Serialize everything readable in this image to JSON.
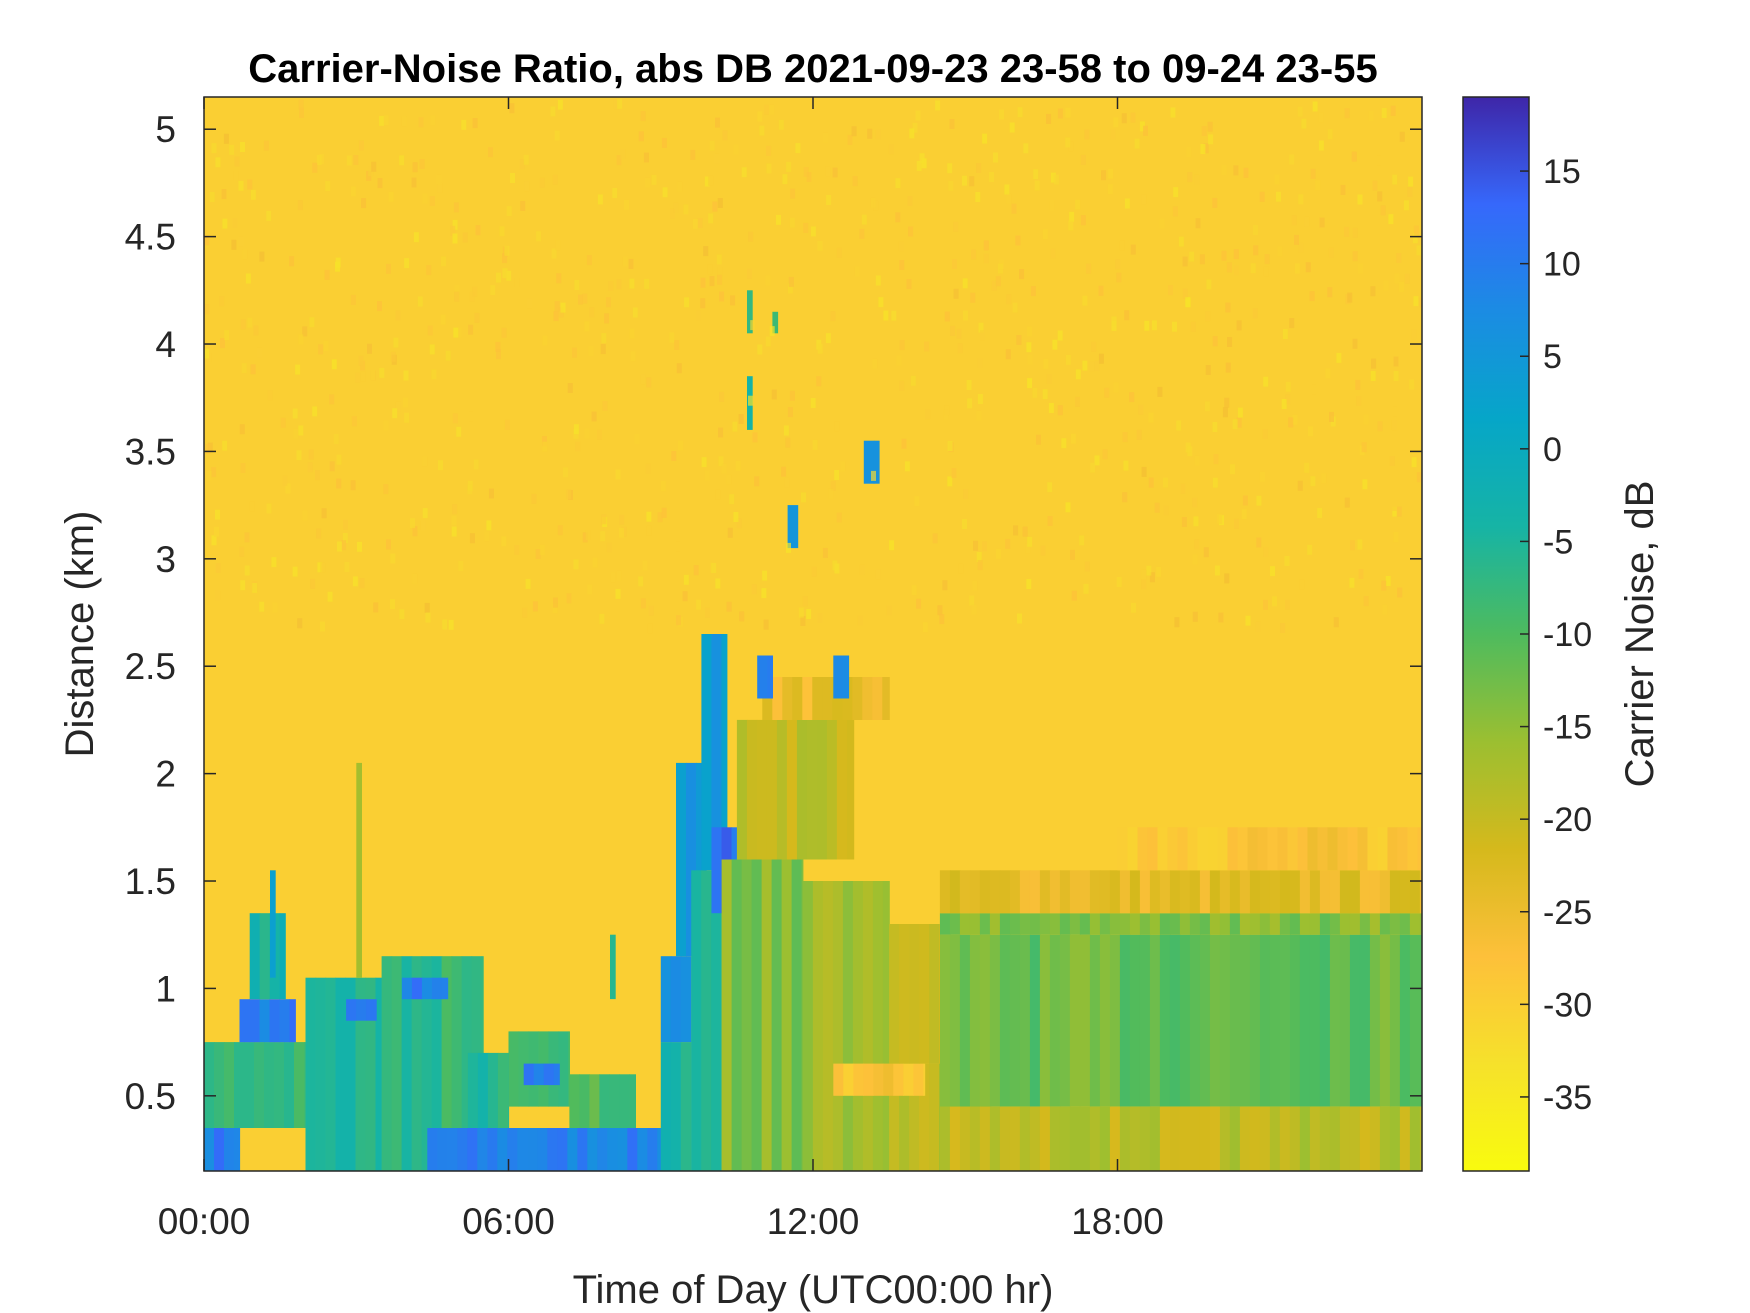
{
  "chart_data": {
    "type": "heatmap",
    "title": "Carrier-Noise Ratio, abs DB 2021-09-23 23-58 to 09-24 23-55",
    "xlabel": "Time of Day (UTC00:00 hr)",
    "ylabel": "Distance (km)",
    "x_unit": "hours",
    "xlim": [
      0,
      24
    ],
    "ylim": [
      0.15,
      5.15
    ],
    "x_ticks": [
      0,
      6,
      12,
      18
    ],
    "x_tick_labels": [
      "00:00",
      "06:00",
      "12:00",
      "18:00"
    ],
    "y_ticks": [
      0.5,
      1,
      1.5,
      2,
      2.5,
      3,
      3.5,
      4,
      4.5,
      5
    ],
    "y_tick_labels": [
      "0.5",
      "1",
      "1.5",
      "2",
      "2.5",
      "3",
      "3.5",
      "4",
      "4.5",
      "5"
    ],
    "colorbar": {
      "label": "Carrier Noise, dB",
      "range": [
        -39,
        19
      ],
      "ticks": [
        -35,
        -30,
        -25,
        -20,
        -15,
        -10,
        -5,
        0,
        5,
        10,
        15
      ],
      "tick_labels": [
        "-35",
        "-30",
        "-25",
        "-20",
        "-15",
        "-10",
        "-5",
        "0",
        "5",
        "10",
        "15"
      ],
      "colormap": "parula-reversed"
    },
    "grid": false,
    "background_level_db": -30,
    "regions": [
      {
        "t0": 0.0,
        "t1": 0.7,
        "d0": 0.15,
        "d1": 0.35,
        "db": 10
      },
      {
        "t0": 0.0,
        "t1": 2.0,
        "d0": 0.35,
        "d1": 0.75,
        "db": -8
      },
      {
        "t0": 0.7,
        "t1": 1.8,
        "d0": 0.75,
        "d1": 0.95,
        "db": 10
      },
      {
        "t0": 0.9,
        "t1": 1.6,
        "d0": 0.95,
        "d1": 1.35,
        "db": -4
      },
      {
        "t0": 2.0,
        "t1": 3.5,
        "d0": 0.15,
        "d1": 1.05,
        "db": -6
      },
      {
        "t0": 2.8,
        "t1": 3.4,
        "d0": 0.85,
        "d1": 0.95,
        "db": 12
      },
      {
        "t0": 3.5,
        "t1": 5.5,
        "d0": 0.15,
        "d1": 1.15,
        "db": -7
      },
      {
        "t0": 3.9,
        "t1": 4.8,
        "d0": 0.95,
        "d1": 1.05,
        "db": 10
      },
      {
        "t0": 5.2,
        "t1": 6.0,
        "d0": 0.15,
        "d1": 0.7,
        "db": -6
      },
      {
        "t0": 6.0,
        "t1": 7.2,
        "d0": 0.45,
        "d1": 0.8,
        "db": -8
      },
      {
        "t0": 6.3,
        "t1": 7.0,
        "d0": 0.55,
        "d1": 0.65,
        "db": 9
      },
      {
        "t0": 4.4,
        "t1": 9.0,
        "d0": 0.15,
        "d1": 0.35,
        "db": 9
      },
      {
        "t0": 7.2,
        "t1": 8.5,
        "d0": 0.35,
        "d1": 0.6,
        "db": -10
      },
      {
        "t0": 9.0,
        "t1": 9.6,
        "d0": 0.15,
        "d1": 0.75,
        "db": -5
      },
      {
        "t0": 9.0,
        "t1": 9.6,
        "d0": 0.75,
        "d1": 1.15,
        "db": 9
      },
      {
        "t0": 9.3,
        "t1": 9.9,
        "d0": 1.15,
        "d1": 2.05,
        "db": 6
      },
      {
        "t0": 9.6,
        "t1": 10.2,
        "d0": 0.15,
        "d1": 1.55,
        "db": -6
      },
      {
        "t0": 9.8,
        "t1": 10.3,
        "d0": 1.55,
        "d1": 2.65,
        "db": 4
      },
      {
        "t0": 10.0,
        "t1": 10.7,
        "d0": 1.35,
        "d1": 1.75,
        "db": 12
      },
      {
        "t0": 10.2,
        "t1": 11.8,
        "d0": 0.15,
        "d1": 1.6,
        "db": -14
      },
      {
        "t0": 10.5,
        "t1": 12.8,
        "d0": 1.6,
        "d1": 2.25,
        "db": -19
      },
      {
        "t0": 11.0,
        "t1": 13.5,
        "d0": 2.25,
        "d1": 2.45,
        "db": -25
      },
      {
        "t0": 11.8,
        "t1": 13.5,
        "d0": 0.15,
        "d1": 1.5,
        "db": -17
      },
      {
        "t0": 13.5,
        "t1": 15.5,
        "d0": 0.15,
        "d1": 0.65,
        "db": -19
      },
      {
        "t0": 12.4,
        "t1": 14.2,
        "d0": 0.5,
        "d1": 0.65,
        "db": -28
      },
      {
        "t0": 13.5,
        "t1": 14.5,
        "d0": 0.65,
        "d1": 1.3,
        "db": -21
      },
      {
        "t0": 14.5,
        "t1": 24.0,
        "d0": 0.15,
        "d1": 0.45,
        "db": -19
      },
      {
        "t0": 14.5,
        "t1": 24.0,
        "d0": 0.45,
        "d1": 1.25,
        "db": -12
      },
      {
        "t0": 14.5,
        "t1": 24.0,
        "d0": 1.25,
        "d1": 1.35,
        "db": -14
      },
      {
        "t0": 14.5,
        "t1": 24.0,
        "d0": 1.35,
        "d1": 1.55,
        "db": -24
      },
      {
        "t0": 18.0,
        "t1": 24.0,
        "d0": 1.55,
        "d1": 1.75,
        "db": -28
      },
      {
        "t0": 10.9,
        "t1": 11.2,
        "d0": 2.35,
        "d1": 2.55,
        "db": 10
      },
      {
        "t0": 12.4,
        "t1": 12.7,
        "d0": 2.35,
        "d1": 2.55,
        "db": 10
      },
      {
        "t0": 11.5,
        "t1": 11.7,
        "d0": 3.05,
        "d1": 3.25,
        "db": 8
      },
      {
        "t0": 13.0,
        "t1": 13.3,
        "d0": 3.35,
        "d1": 3.55,
        "db": 7
      },
      {
        "t0": 10.7,
        "t1": 10.8,
        "d0": 3.6,
        "d1": 3.85,
        "db": -2
      },
      {
        "t0": 10.7,
        "t1": 10.8,
        "d0": 4.05,
        "d1": 4.25,
        "db": -8
      },
      {
        "t0": 11.2,
        "t1": 11.3,
        "d0": 4.05,
        "d1": 4.15,
        "db": -6
      },
      {
        "t0": 3.0,
        "t1": 3.1,
        "d0": 1.05,
        "d1": 2.05,
        "db": -14
      },
      {
        "t0": 1.3,
        "t1": 1.4,
        "d0": 1.05,
        "d1": 1.55,
        "db": 6
      },
      {
        "t0": 8.0,
        "t1": 8.1,
        "d0": 0.95,
        "d1": 1.25,
        "db": -8
      }
    ]
  }
}
